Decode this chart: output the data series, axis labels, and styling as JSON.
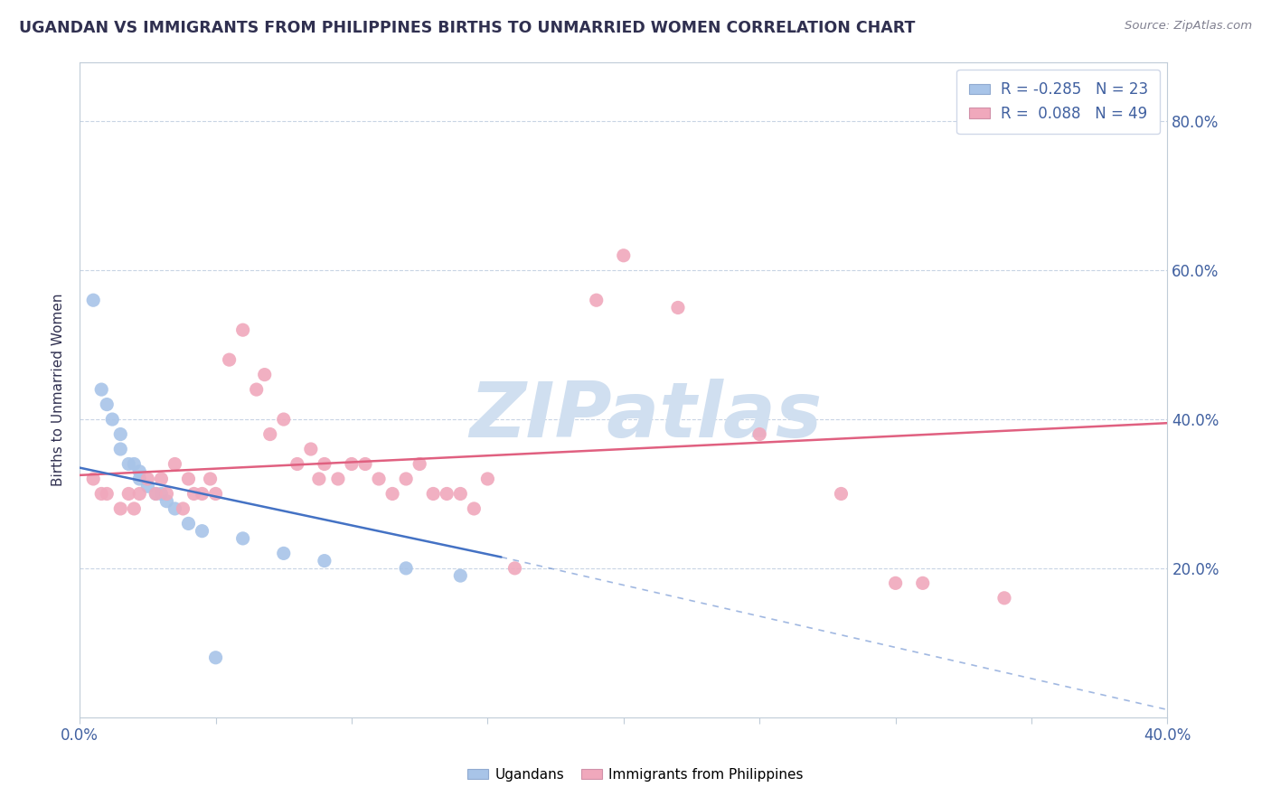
{
  "title": "UGANDAN VS IMMIGRANTS FROM PHILIPPINES BIRTHS TO UNMARRIED WOMEN CORRELATION CHART",
  "source": "Source: ZipAtlas.com",
  "ylabel": "Births to Unmarried Women",
  "xlim": [
    0.0,
    0.4
  ],
  "ylim": [
    0.0,
    0.88
  ],
  "ugandan_color": "#a8c4e8",
  "philippines_color": "#f0a8bc",
  "trendline_ugandan_color": "#4472c4",
  "trendline_philippines_color": "#e06080",
  "watermark_color": "#d0dff0",
  "R_ugandan": -0.285,
  "N_ugandan": 23,
  "R_philippines": 0.088,
  "N_philippines": 49,
  "ugandan_points": [
    [
      0.005,
      0.56
    ],
    [
      0.008,
      0.44
    ],
    [
      0.01,
      0.42
    ],
    [
      0.012,
      0.4
    ],
    [
      0.015,
      0.38
    ],
    [
      0.015,
      0.36
    ],
    [
      0.018,
      0.34
    ],
    [
      0.02,
      0.34
    ],
    [
      0.022,
      0.33
    ],
    [
      0.022,
      0.32
    ],
    [
      0.025,
      0.31
    ],
    [
      0.028,
      0.3
    ],
    [
      0.03,
      0.3
    ],
    [
      0.032,
      0.29
    ],
    [
      0.035,
      0.28
    ],
    [
      0.04,
      0.26
    ],
    [
      0.045,
      0.25
    ],
    [
      0.06,
      0.24
    ],
    [
      0.075,
      0.22
    ],
    [
      0.09,
      0.21
    ],
    [
      0.12,
      0.2
    ],
    [
      0.14,
      0.19
    ],
    [
      0.05,
      0.08
    ]
  ],
  "philippines_points": [
    [
      0.005,
      0.32
    ],
    [
      0.008,
      0.3
    ],
    [
      0.01,
      0.3
    ],
    [
      0.015,
      0.28
    ],
    [
      0.018,
      0.3
    ],
    [
      0.02,
      0.28
    ],
    [
      0.022,
      0.3
    ],
    [
      0.025,
      0.32
    ],
    [
      0.028,
      0.3
    ],
    [
      0.03,
      0.32
    ],
    [
      0.032,
      0.3
    ],
    [
      0.035,
      0.34
    ],
    [
      0.038,
      0.28
    ],
    [
      0.04,
      0.32
    ],
    [
      0.042,
      0.3
    ],
    [
      0.045,
      0.3
    ],
    [
      0.048,
      0.32
    ],
    [
      0.05,
      0.3
    ],
    [
      0.055,
      0.48
    ],
    [
      0.06,
      0.52
    ],
    [
      0.065,
      0.44
    ],
    [
      0.068,
      0.46
    ],
    [
      0.07,
      0.38
    ],
    [
      0.075,
      0.4
    ],
    [
      0.08,
      0.34
    ],
    [
      0.085,
      0.36
    ],
    [
      0.088,
      0.32
    ],
    [
      0.09,
      0.34
    ],
    [
      0.095,
      0.32
    ],
    [
      0.1,
      0.34
    ],
    [
      0.105,
      0.34
    ],
    [
      0.11,
      0.32
    ],
    [
      0.115,
      0.3
    ],
    [
      0.12,
      0.32
    ],
    [
      0.125,
      0.34
    ],
    [
      0.13,
      0.3
    ],
    [
      0.135,
      0.3
    ],
    [
      0.14,
      0.3
    ],
    [
      0.145,
      0.28
    ],
    [
      0.15,
      0.32
    ],
    [
      0.16,
      0.2
    ],
    [
      0.19,
      0.56
    ],
    [
      0.2,
      0.62
    ],
    [
      0.22,
      0.55
    ],
    [
      0.25,
      0.38
    ],
    [
      0.28,
      0.3
    ],
    [
      0.3,
      0.18
    ],
    [
      0.31,
      0.18
    ],
    [
      0.34,
      0.16
    ]
  ],
  "background_color": "#ffffff",
  "grid_color": "#c8d4e4",
  "title_color": "#303050",
  "axis_label_color": "#4060a0",
  "watermark": "ZIPatlas",
  "trendline_ug_x0": 0.0,
  "trendline_ug_x1": 0.155,
  "trendline_ug_y0": 0.335,
  "trendline_ug_y1": 0.215,
  "trendline_ug_dash_x0": 0.155,
  "trendline_ug_dash_x1": 0.4,
  "trendline_ug_dash_y0": 0.215,
  "trendline_ug_dash_y1": 0.01,
  "trendline_ph_x0": 0.0,
  "trendline_ph_x1": 0.4,
  "trendline_ph_y0": 0.325,
  "trendline_ph_y1": 0.395
}
